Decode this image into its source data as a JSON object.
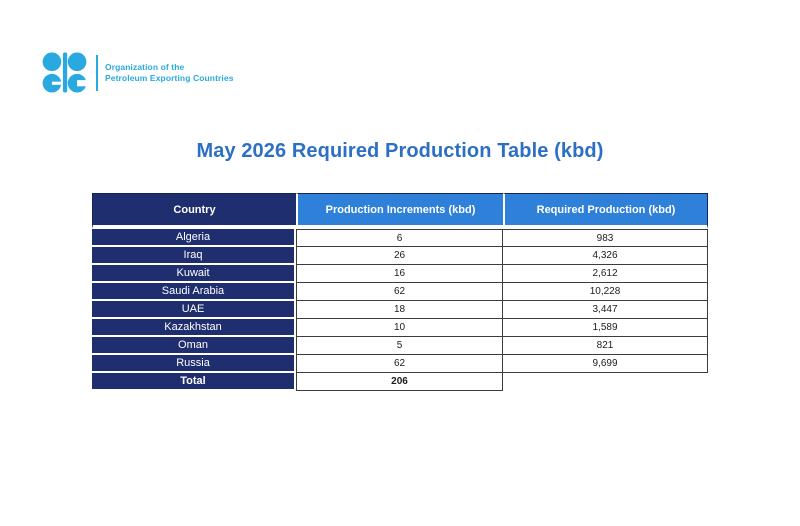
{
  "logo": {
    "org_line1": "Organization of the",
    "org_line2": "Petroleum Exporting Countries"
  },
  "title": "May 2026 Required Production Table (kbd)",
  "table": {
    "columns": [
      "Country",
      "Production Increments (kbd)",
      "Required Production (kbd)"
    ],
    "rows": [
      {
        "country": "Algeria",
        "increment": "6",
        "required": "983"
      },
      {
        "country": "Iraq",
        "increment": "26",
        "required": "4,326"
      },
      {
        "country": "Kuwait",
        "increment": "16",
        "required": "2,612"
      },
      {
        "country": "Saudi Arabia",
        "increment": "62",
        "required": "10,228"
      },
      {
        "country": "UAE",
        "increment": "18",
        "required": "3,447"
      },
      {
        "country": "Kazakhstan",
        "increment": "10",
        "required": "1,589"
      },
      {
        "country": "Oman",
        "increment": "5",
        "required": "821"
      },
      {
        "country": "Russia",
        "increment": "62",
        "required": "9,699"
      },
      {
        "country": "Total",
        "increment": "206",
        "required": null,
        "is_total": true
      }
    ]
  },
  "colors": {
    "navy": "#1F2E6E",
    "header_blue": "#2E80D8",
    "title_blue": "#2D6FC4",
    "logo_blue": "#29A9E0"
  }
}
